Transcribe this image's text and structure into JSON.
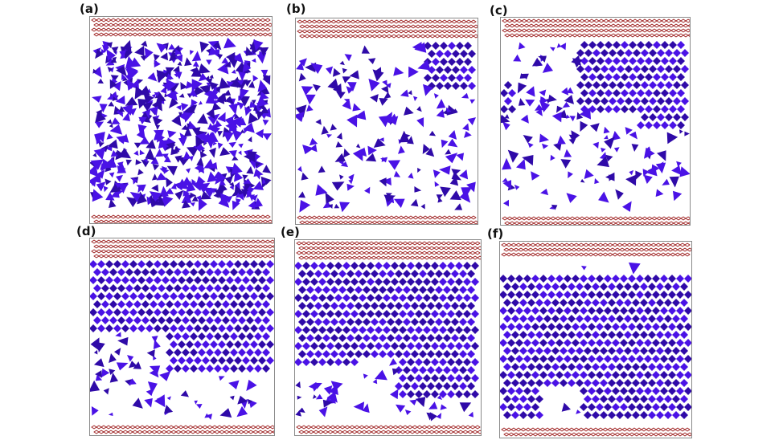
{
  "figure": {
    "panels": [
      {
        "id": "a",
        "label": "(a)",
        "crystal_fraction": 0.0
      },
      {
        "id": "b",
        "label": "(b)",
        "crystal_fraction": 0.15
      },
      {
        "id": "c",
        "label": "(c)",
        "crystal_fraction": 0.35
      },
      {
        "id": "d",
        "label": "(d)",
        "crystal_fraction": 0.6
      },
      {
        "id": "e",
        "label": "(e)",
        "crystal_fraction": 0.8
      },
      {
        "id": "f",
        "label": "(f)",
        "crystal_fraction": 0.95
      }
    ]
  },
  "colors": {
    "particle": "#4a12e6",
    "particle_dark": "#2f0aa8",
    "wall": "#9c1c1c",
    "frame": "#8a8a8a"
  },
  "icons": [
    "wall-lattice-top",
    "wall-lattice-bottom",
    "particle-cluster"
  ]
}
